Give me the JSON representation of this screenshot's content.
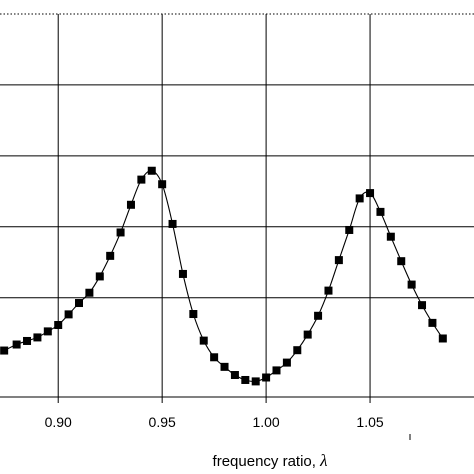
{
  "chart_data": {
    "type": "line",
    "xlabel": "frequency ratio, ",
    "xlabel_symbol": "λ",
    "ylabel": "",
    "title": "",
    "xlim": [
      0.872,
      1.1
    ],
    "ylim": [
      0.0,
      1.0
    ],
    "grid": true,
    "x_ticks": [
      {
        "value": 0.9,
        "label": "0.90"
      },
      {
        "value": 0.95,
        "label": "0.95"
      },
      {
        "value": 1.0,
        "label": "1.00"
      },
      {
        "value": 1.05,
        "label": "1.05"
      }
    ],
    "y_gridlines": [
      0.2,
      0.4,
      0.6,
      0.8
    ],
    "top_reference_line": 1.0,
    "series": [
      {
        "marker": "square",
        "color": "#000000",
        "points": [
          {
            "x": 0.874,
            "y": 0.051
          },
          {
            "x": 0.88,
            "y": 0.068
          },
          {
            "x": 0.885,
            "y": 0.078
          },
          {
            "x": 0.89,
            "y": 0.088
          },
          {
            "x": 0.895,
            "y": 0.105
          },
          {
            "x": 0.9,
            "y": 0.123
          },
          {
            "x": 0.905,
            "y": 0.153
          },
          {
            "x": 0.91,
            "y": 0.185
          },
          {
            "x": 0.915,
            "y": 0.214
          },
          {
            "x": 0.92,
            "y": 0.26
          },
          {
            "x": 0.925,
            "y": 0.318
          },
          {
            "x": 0.93,
            "y": 0.384
          },
          {
            "x": 0.935,
            "y": 0.462
          },
          {
            "x": 0.94,
            "y": 0.533
          },
          {
            "x": 0.945,
            "y": 0.558
          },
          {
            "x": 0.95,
            "y": 0.52
          },
          {
            "x": 0.955,
            "y": 0.408
          },
          {
            "x": 0.96,
            "y": 0.267
          },
          {
            "x": 0.965,
            "y": 0.154
          },
          {
            "x": 0.97,
            "y": 0.079
          },
          {
            "x": 0.975,
            "y": 0.032
          },
          {
            "x": 0.98,
            "y": 0.005
          },
          {
            "x": 0.985,
            "y": -0.018
          },
          {
            "x": 0.99,
            "y": -0.032
          },
          {
            "x": 0.995,
            "y": -0.036
          },
          {
            "x": 1.0,
            "y": -0.025
          },
          {
            "x": 1.005,
            "y": -0.005
          },
          {
            "x": 1.01,
            "y": 0.017
          },
          {
            "x": 1.015,
            "y": 0.052
          },
          {
            "x": 1.02,
            "y": 0.096
          },
          {
            "x": 1.025,
            "y": 0.149
          },
          {
            "x": 1.03,
            "y": 0.22
          },
          {
            "x": 1.035,
            "y": 0.306
          },
          {
            "x": 1.04,
            "y": 0.391
          },
          {
            "x": 1.045,
            "y": 0.48
          },
          {
            "x": 1.05,
            "y": 0.495
          },
          {
            "x": 1.055,
            "y": 0.442
          },
          {
            "x": 1.06,
            "y": 0.372
          },
          {
            "x": 1.065,
            "y": 0.303
          },
          {
            "x": 1.07,
            "y": 0.237
          },
          {
            "x": 1.075,
            "y": 0.179
          },
          {
            "x": 1.08,
            "y": 0.129
          },
          {
            "x": 1.085,
            "y": 0.085
          }
        ]
      }
    ]
  }
}
